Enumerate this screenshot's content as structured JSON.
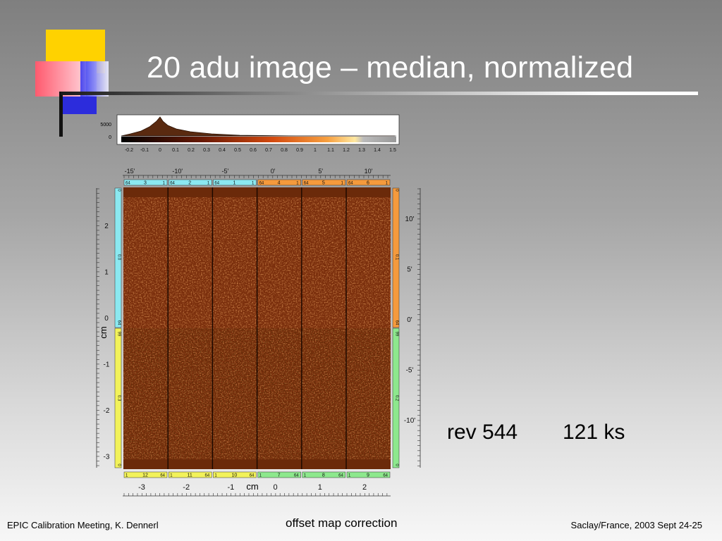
{
  "slide": {
    "title": "20 adu image – median, normalized",
    "rev": "rev 544",
    "exposure": "121 ks"
  },
  "footer": {
    "left": "EPIC Calibration Meeting, K. Dennerl",
    "center": "offset map correction",
    "right": "Saclay/France, 2003 Sept 24-25"
  },
  "figure": {
    "histogram_y_ticks": [
      "5000",
      "0"
    ],
    "colorbar_ticks": [
      "-0.2",
      "-0.1",
      "0",
      "0.1",
      "0.2",
      "0.3",
      "0.4",
      "0.5",
      "0.6",
      "0.7",
      "0.8",
      "0.9",
      "1",
      "1.1",
      "1.2",
      "1.3",
      "1.4",
      "1.5"
    ],
    "top_arcmin_ticks": [
      "-15'",
      "-10'",
      "-5'",
      "0'",
      "5'",
      "10'"
    ],
    "top_ccd_labels": [
      {
        "left": "64",
        "ccd": "3",
        "right": "1",
        "color": "#8be8f0"
      },
      {
        "left": "64",
        "ccd": "2",
        "right": "1",
        "color": "#8be8f0"
      },
      {
        "left": "64",
        "ccd": "1",
        "right": "1",
        "color": "#8be8f0"
      },
      {
        "left": "64",
        "ccd": "4",
        "right": "1",
        "color": "#f59a3c"
      },
      {
        "left": "64",
        "ccd": "5",
        "right": "1",
        "color": "#f59a3c"
      },
      {
        "left": "64",
        "ccd": "6",
        "right": "1",
        "color": "#f59a3c"
      }
    ],
    "bottom_ccd_labels": [
      {
        "left": "1",
        "ccd": "12",
        "right": "64",
        "color": "#f2f25a"
      },
      {
        "left": "1",
        "ccd": "11",
        "right": "64",
        "color": "#f2f25a"
      },
      {
        "left": "1",
        "ccd": "10",
        "right": "64",
        "color": "#f2f25a"
      },
      {
        "left": "1",
        "ccd": "7",
        "right": "64",
        "color": "#8de88d"
      },
      {
        "left": "1",
        "ccd": "8",
        "right": "64",
        "color": "#8de88d"
      },
      {
        "left": "1",
        "ccd": "9",
        "right": "64",
        "color": "#8de88d"
      }
    ],
    "bottom_cm_ticks": [
      "-3",
      "-2",
      "-1",
      "0",
      "1",
      "2"
    ],
    "bottom_axis_label": "cm",
    "left_cm_ticks": [
      "2",
      "1",
      "0",
      "-1",
      "-2",
      "-3"
    ],
    "left_axis_label": "cm",
    "right_arcmin_ticks": [
      "10'",
      "5'",
      "0'",
      "-5'",
      "-10'"
    ],
    "left_bar_labels": [
      "0",
      "0.0",
      "64",
      "99",
      "0.3",
      "0"
    ],
    "right_bar_labels": [
      "0",
      "0.1",
      "64",
      "99",
      "0.2",
      "0"
    ],
    "colors": {
      "image_base": "#7a2e0c",
      "cyan": "#8be8f0",
      "orange": "#f59a3c",
      "yellow": "#f2f25a",
      "green": "#8de88d"
    }
  }
}
